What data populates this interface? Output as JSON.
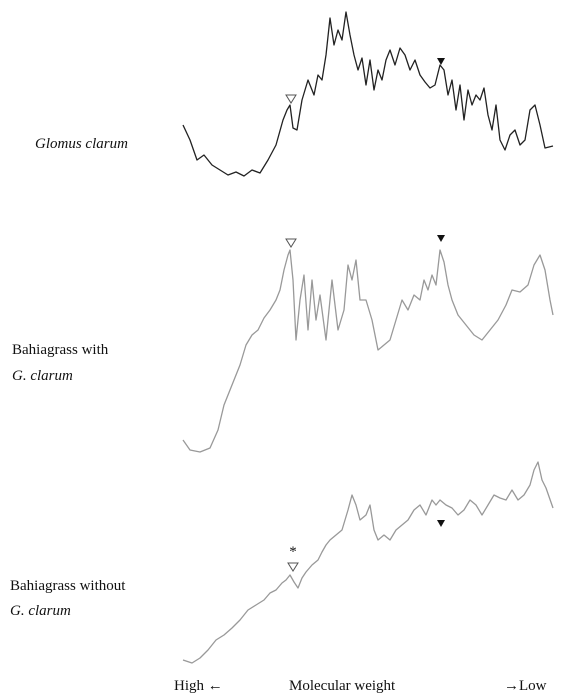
{
  "panels": [
    {
      "label_lines": [
        "Glomus clarum"
      ]
    },
    {
      "label_lines": [
        "Bahiagrass with",
        "G. clarum"
      ]
    },
    {
      "label_lines": [
        "Bahiagrass without",
        "G. clarum"
      ],
      "note": "*"
    }
  ],
  "axis": {
    "high": "High ←",
    "title": "Molecular weight",
    "low": "→Low"
  }
}
